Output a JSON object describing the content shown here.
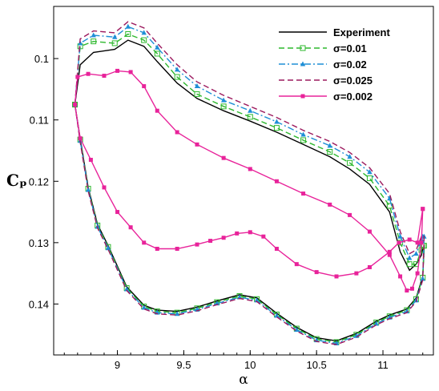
{
  "chart_data": {
    "type": "line",
    "title": "",
    "xlabel": "α",
    "ylabel": "Cₚ",
    "xlim": [
      8.52,
      11.38
    ],
    "ylim": [
      0.1483,
      0.0915
    ],
    "y_inverted": true,
    "grid": false,
    "legend_position": "top-right",
    "x_ticks": [
      {
        "value": 9,
        "label": "9"
      },
      {
        "value": 9.5,
        "label": "9.5"
      },
      {
        "value": 10,
        "label": "10"
      },
      {
        "value": 10.5,
        "label": "10.5"
      },
      {
        "value": 11,
        "label": "11"
      }
    ],
    "y_ticks": [
      {
        "value": 0.1,
        "label": "0.1"
      },
      {
        "value": 0.11,
        "label": "0.11"
      },
      {
        "value": 0.12,
        "label": "0.12"
      },
      {
        "value": 0.13,
        "label": "0.13"
      },
      {
        "value": 0.14,
        "label": "0.14"
      }
    ],
    "series": [
      {
        "name": "Experiment",
        "color": "#000000",
        "dash": "solid",
        "marker": "none",
        "upper": [
          [
            8.68,
            0.1075
          ],
          [
            8.72,
            0.101
          ],
          [
            8.82,
            0.099
          ],
          [
            8.98,
            0.0985
          ],
          [
            9.08,
            0.097
          ],
          [
            9.2,
            0.098
          ],
          [
            9.3,
            0.1005
          ],
          [
            9.45,
            0.104
          ],
          [
            9.6,
            0.1065
          ],
          [
            9.8,
            0.1085
          ],
          [
            10.0,
            0.1102
          ],
          [
            10.2,
            0.112
          ],
          [
            10.4,
            0.114
          ],
          [
            10.6,
            0.116
          ],
          [
            10.75,
            0.118
          ],
          [
            10.9,
            0.1205
          ],
          [
            11.05,
            0.125
          ],
          [
            11.13,
            0.1315
          ],
          [
            11.2,
            0.1345
          ],
          [
            11.25,
            0.1335
          ],
          [
            11.29,
            0.132
          ],
          [
            11.3,
            0.131
          ]
        ],
        "lower": [
          [
            8.68,
            0.1075
          ],
          [
            8.72,
            0.113
          ],
          [
            8.78,
            0.121
          ],
          [
            8.85,
            0.127
          ],
          [
            8.93,
            0.1305
          ],
          [
            9.07,
            0.1372
          ],
          [
            9.2,
            0.1402
          ],
          [
            9.3,
            0.141
          ],
          [
            9.45,
            0.1412
          ],
          [
            9.6,
            0.1405
          ],
          [
            9.75,
            0.1395
          ],
          [
            9.92,
            0.1385
          ],
          [
            10.05,
            0.139
          ],
          [
            10.2,
            0.1415
          ],
          [
            10.35,
            0.1438
          ],
          [
            10.5,
            0.1455
          ],
          [
            10.65,
            0.146
          ],
          [
            10.8,
            0.1448
          ],
          [
            10.95,
            0.1428
          ],
          [
            11.05,
            0.1418
          ],
          [
            11.18,
            0.1408
          ],
          [
            11.25,
            0.139
          ],
          [
            11.3,
            0.1355
          ],
          [
            11.31,
            0.131
          ]
        ]
      },
      {
        "name": "σ=0.01",
        "color": "#2db82d",
        "dash": "dashed",
        "marker": "open-square",
        "upper": [
          [
            8.68,
            0.1075
          ],
          [
            8.72,
            0.098
          ],
          [
            8.82,
            0.0972
          ],
          [
            8.98,
            0.0975
          ],
          [
            9.08,
            0.096
          ],
          [
            9.2,
            0.097
          ],
          [
            9.3,
            0.0992
          ],
          [
            9.45,
            0.103
          ],
          [
            9.6,
            0.1058
          ],
          [
            9.8,
            0.1078
          ],
          [
            10.0,
            0.1095
          ],
          [
            10.2,
            0.1113
          ],
          [
            10.4,
            0.1133
          ],
          [
            10.6,
            0.1152
          ],
          [
            10.75,
            0.117
          ],
          [
            10.9,
            0.1195
          ],
          [
            11.05,
            0.124
          ],
          [
            11.13,
            0.13
          ],
          [
            11.2,
            0.1335
          ],
          [
            11.25,
            0.1335
          ],
          [
            11.29,
            0.1312
          ],
          [
            11.3,
            0.1305
          ]
        ],
        "lower": [
          [
            8.68,
            0.1075
          ],
          [
            8.72,
            0.1132
          ],
          [
            8.78,
            0.1212
          ],
          [
            8.85,
            0.1272
          ],
          [
            8.93,
            0.1307
          ],
          [
            9.07,
            0.1374
          ],
          [
            9.2,
            0.1404
          ],
          [
            9.3,
            0.1412
          ],
          [
            9.45,
            0.1414
          ],
          [
            9.6,
            0.1407
          ],
          [
            9.75,
            0.1397
          ],
          [
            9.92,
            0.1387
          ],
          [
            10.05,
            0.1392
          ],
          [
            10.2,
            0.1417
          ],
          [
            10.35,
            0.144
          ],
          [
            10.5,
            0.1457
          ],
          [
            10.65,
            0.1462
          ],
          [
            10.8,
            0.145
          ],
          [
            10.95,
            0.143
          ],
          [
            11.05,
            0.142
          ],
          [
            11.18,
            0.141
          ],
          [
            11.25,
            0.1392
          ],
          [
            11.3,
            0.1357
          ],
          [
            11.31,
            0.1305
          ]
        ]
      },
      {
        "name": "σ=0.02",
        "color": "#1f8fd6",
        "dash": "dashdot",
        "marker": "filled-triangle",
        "upper": [
          [
            8.68,
            0.1075
          ],
          [
            8.72,
            0.0975
          ],
          [
            8.82,
            0.0962
          ],
          [
            8.98,
            0.0965
          ],
          [
            9.08,
            0.0948
          ],
          [
            9.2,
            0.0958
          ],
          [
            9.3,
            0.0982
          ],
          [
            9.45,
            0.1018
          ],
          [
            9.6,
            0.1045
          ],
          [
            9.8,
            0.1068
          ],
          [
            10.0,
            0.1085
          ],
          [
            10.2,
            0.1103
          ],
          [
            10.4,
            0.1124
          ],
          [
            10.6,
            0.1142
          ],
          [
            10.75,
            0.116
          ],
          [
            10.9,
            0.1185
          ],
          [
            11.05,
            0.1228
          ],
          [
            11.13,
            0.129
          ],
          [
            11.2,
            0.1325
          ],
          [
            11.25,
            0.1318
          ],
          [
            11.29,
            0.1295
          ],
          [
            11.3,
            0.129
          ]
        ],
        "lower": [
          [
            8.68,
            0.1075
          ],
          [
            8.72,
            0.1134
          ],
          [
            8.78,
            0.1214
          ],
          [
            8.85,
            0.1274
          ],
          [
            8.93,
            0.1309
          ],
          [
            9.07,
            0.1376
          ],
          [
            9.2,
            0.1406
          ],
          [
            9.3,
            0.1414
          ],
          [
            9.45,
            0.1416
          ],
          [
            9.6,
            0.1409
          ],
          [
            9.75,
            0.1399
          ],
          [
            9.92,
            0.1389
          ],
          [
            10.05,
            0.1394
          ],
          [
            10.2,
            0.1419
          ],
          [
            10.35,
            0.1442
          ],
          [
            10.5,
            0.1459
          ],
          [
            10.65,
            0.1464
          ],
          [
            10.8,
            0.1452
          ],
          [
            10.95,
            0.1432
          ],
          [
            11.05,
            0.1422
          ],
          [
            11.18,
            0.1412
          ],
          [
            11.25,
            0.1394
          ],
          [
            11.3,
            0.1359
          ],
          [
            11.31,
            0.129
          ]
        ]
      },
      {
        "name": "σ=0.025",
        "color": "#9c1a5e",
        "dash": "dashed",
        "marker": "none",
        "upper": [
          [
            8.68,
            0.1075
          ],
          [
            8.72,
            0.0968
          ],
          [
            8.82,
            0.0955
          ],
          [
            8.98,
            0.0958
          ],
          [
            9.08,
            0.094
          ],
          [
            9.2,
            0.095
          ],
          [
            9.3,
            0.0975
          ],
          [
            9.45,
            0.101
          ],
          [
            9.6,
            0.1038
          ],
          [
            9.8,
            0.106
          ],
          [
            10.0,
            0.1078
          ],
          [
            10.2,
            0.1096
          ],
          [
            10.4,
            0.1117
          ],
          [
            10.6,
            0.1135
          ],
          [
            10.75,
            0.1153
          ],
          [
            10.9,
            0.1178
          ],
          [
            11.05,
            0.122
          ],
          [
            11.13,
            0.1282
          ],
          [
            11.2,
            0.1318
          ],
          [
            11.25,
            0.1312
          ],
          [
            11.29,
            0.129
          ],
          [
            11.3,
            0.1285
          ]
        ],
        "lower": [
          [
            8.68,
            0.1075
          ],
          [
            8.72,
            0.1136
          ],
          [
            8.78,
            0.1216
          ],
          [
            8.85,
            0.1276
          ],
          [
            8.93,
            0.1311
          ],
          [
            9.07,
            0.1378
          ],
          [
            9.2,
            0.1408
          ],
          [
            9.3,
            0.1416
          ],
          [
            9.45,
            0.1418
          ],
          [
            9.6,
            0.1411
          ],
          [
            9.75,
            0.1401
          ],
          [
            9.92,
            0.1391
          ],
          [
            10.05,
            0.1396
          ],
          [
            10.2,
            0.1421
          ],
          [
            10.35,
            0.1444
          ],
          [
            10.5,
            0.1461
          ],
          [
            10.65,
            0.1466
          ],
          [
            10.8,
            0.1454
          ],
          [
            10.95,
            0.1434
          ],
          [
            11.05,
            0.1424
          ],
          [
            11.18,
            0.1414
          ],
          [
            11.25,
            0.1396
          ],
          [
            11.3,
            0.1361
          ],
          [
            11.31,
            0.1285
          ]
        ]
      },
      {
        "name": "σ=0.002",
        "color": "#e8239a",
        "dash": "solid",
        "marker": "filled-square",
        "upper": [
          [
            8.68,
            0.1075
          ],
          [
            8.7,
            0.103
          ],
          [
            8.78,
            0.1025
          ],
          [
            8.9,
            0.1028
          ],
          [
            9.0,
            0.102
          ],
          [
            9.1,
            0.1022
          ],
          [
            9.2,
            0.1045
          ],
          [
            9.3,
            0.1085
          ],
          [
            9.45,
            0.112
          ],
          [
            9.6,
            0.114
          ],
          [
            9.8,
            0.1162
          ],
          [
            10.0,
            0.118
          ],
          [
            10.2,
            0.12
          ],
          [
            10.4,
            0.122
          ],
          [
            10.6,
            0.1238
          ],
          [
            10.75,
            0.1255
          ],
          [
            10.9,
            0.1282
          ],
          [
            11.05,
            0.132
          ],
          [
            11.13,
            0.1355
          ],
          [
            11.18,
            0.1378
          ],
          [
            11.22,
            0.1375
          ],
          [
            11.26,
            0.135
          ],
          [
            11.29,
            0.13
          ],
          [
            11.3,
            0.1245
          ]
        ],
        "lower": [
          [
            8.68,
            0.1075
          ],
          [
            8.72,
            0.113
          ],
          [
            8.8,
            0.1165
          ],
          [
            8.9,
            0.121
          ],
          [
            9.0,
            0.125
          ],
          [
            9.1,
            0.1275
          ],
          [
            9.2,
            0.13
          ],
          [
            9.3,
            0.131
          ],
          [
            9.45,
            0.131
          ],
          [
            9.6,
            0.1303
          ],
          [
            9.7,
            0.1297
          ],
          [
            9.8,
            0.1292
          ],
          [
            9.9,
            0.1285
          ],
          [
            10.0,
            0.1283
          ],
          [
            10.1,
            0.129
          ],
          [
            10.2,
            0.131
          ],
          [
            10.35,
            0.1335
          ],
          [
            10.5,
            0.1348
          ],
          [
            10.65,
            0.1355
          ],
          [
            10.8,
            0.135
          ],
          [
            10.9,
            0.134
          ],
          [
            11.05,
            0.1315
          ],
          [
            11.12,
            0.13
          ],
          [
            11.2,
            0.1295
          ],
          [
            11.26,
            0.13
          ],
          [
            11.3,
            0.1245
          ]
        ]
      }
    ]
  }
}
